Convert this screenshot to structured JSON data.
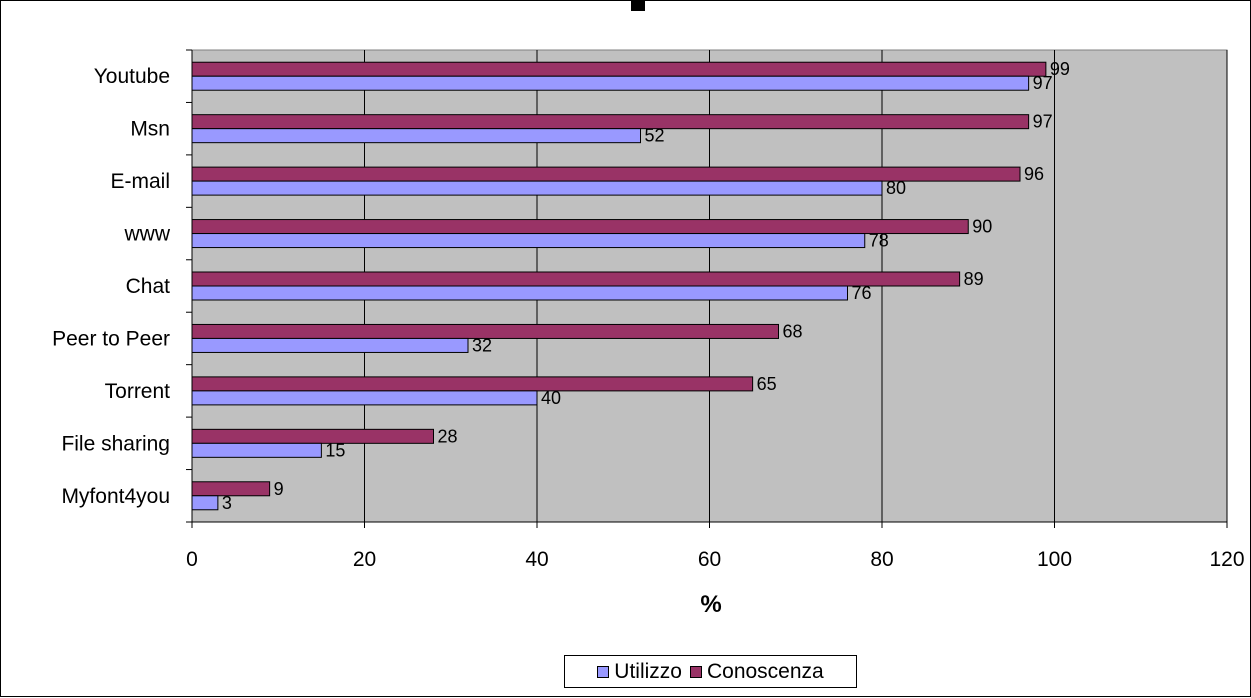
{
  "chart_data": {
    "type": "bar",
    "orientation": "horizontal",
    "categories": [
      "Youtube",
      "Msn",
      "E-mail",
      "www",
      "Chat",
      "Peer to Peer",
      "Torrent",
      "File sharing",
      "Myfont4you"
    ],
    "series": [
      {
        "name": "Utilizzo",
        "color": "#9999ff",
        "values": [
          97,
          52,
          80,
          78,
          76,
          32,
          40,
          15,
          3
        ]
      },
      {
        "name": "Conoscenza",
        "color": "#993366",
        "values": [
          99,
          97,
          96,
          90,
          89,
          68,
          65,
          28,
          9
        ]
      }
    ],
    "xlim": [
      0,
      120
    ],
    "xticks": [
      "0",
      "20",
      "40",
      "60",
      "80",
      "100",
      "120"
    ],
    "xlabel": "%",
    "grid": true,
    "plot_background": "#c0c0c0",
    "legend_position": "bottom"
  }
}
